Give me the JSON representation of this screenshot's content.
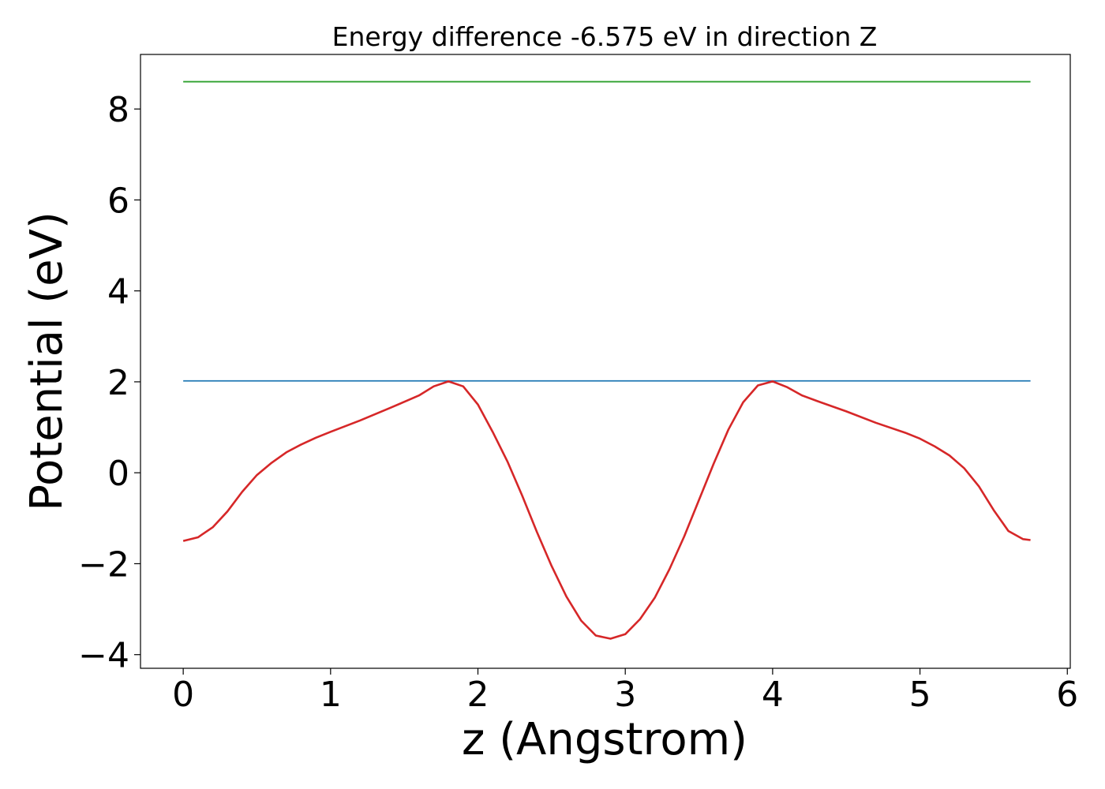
{
  "chart_data": {
    "type": "line",
    "title": "Energy difference -6.575 eV in direction Z",
    "xlabel": "z (Angstrom)",
    "ylabel": "Potential (eV)",
    "xlim": [
      -0.29,
      6.02
    ],
    "ylim": [
      -4.3,
      9.2
    ],
    "xticks": [
      0,
      1,
      2,
      3,
      4,
      5,
      6
    ],
    "xtick_labels": [
      "0",
      "1",
      "2",
      "3",
      "4",
      "5",
      "6"
    ],
    "yticks": [
      -4,
      -2,
      0,
      2,
      4,
      6,
      8
    ],
    "ytick_labels": [
      "−4",
      "−2",
      "0",
      "2",
      "4",
      "6",
      "8"
    ],
    "grid": false,
    "legend": "none",
    "series": [
      {
        "color": "#2ca02c",
        "x": [
          0,
          5.75
        ],
        "y": [
          8.6,
          8.6
        ]
      },
      {
        "color": "#1f77b4",
        "x": [
          0,
          5.75
        ],
        "y": [
          2.02,
          2.02
        ]
      },
      {
        "color": "#d62728",
        "x": [
          0,
          0.1,
          0.2,
          0.3,
          0.4,
          0.5,
          0.6,
          0.7,
          0.8,
          0.9,
          1.0,
          1.2,
          1.4,
          1.6,
          1.7,
          1.8,
          1.9,
          2.0,
          2.1,
          2.2,
          2.3,
          2.4,
          2.5,
          2.6,
          2.7,
          2.8,
          2.9,
          3.0,
          3.1,
          3.2,
          3.3,
          3.4,
          3.5,
          3.6,
          3.7,
          3.8,
          3.9,
          4.0,
          4.1,
          4.2,
          4.3,
          4.5,
          4.7,
          4.9,
          5.0,
          5.1,
          5.2,
          5.3,
          5.4,
          5.5,
          5.6,
          5.7,
          5.75
        ],
        "y": [
          -1.5,
          -1.42,
          -1.2,
          -0.85,
          -0.42,
          -0.05,
          0.22,
          0.45,
          0.62,
          0.77,
          0.9,
          1.15,
          1.42,
          1.7,
          1.9,
          2.01,
          1.9,
          1.5,
          0.9,
          0.25,
          -0.5,
          -1.3,
          -2.05,
          -2.72,
          -3.25,
          -3.58,
          -3.65,
          -3.55,
          -3.22,
          -2.75,
          -2.12,
          -1.4,
          -0.6,
          0.2,
          0.95,
          1.55,
          1.92,
          2.01,
          1.88,
          1.7,
          1.58,
          1.35,
          1.1,
          0.88,
          0.75,
          0.58,
          0.38,
          0.1,
          -0.3,
          -0.82,
          -1.28,
          -1.46,
          -1.48
        ]
      }
    ]
  }
}
